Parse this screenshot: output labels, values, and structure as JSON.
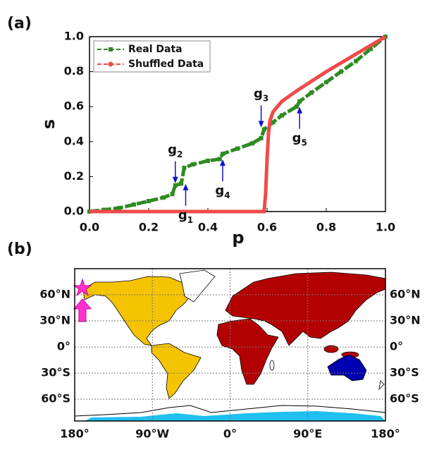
{
  "chart_data": [
    {
      "type": "line",
      "title": "(a)",
      "xlabel": "p",
      "ylabel": "s",
      "xlim": [
        0,
        1
      ],
      "ylim": [
        0,
        1
      ],
      "xticks": [
        {
          "value": 0,
          "label": "0.0"
        },
        0.2,
        0.4,
        0.6,
        0.8,
        {
          "value": 1,
          "label": "1.0"
        }
      ],
      "yticks": [
        {
          "value": 0,
          "label": "0.0"
        },
        0.2,
        0.4,
        0.6,
        0.8,
        {
          "value": 1,
          "label": "1.0"
        }
      ],
      "legend": "upper left",
      "series": [
        {
          "name": "Real Data",
          "color": "#2e8b22",
          "x": [
            0,
            0.05,
            0.1,
            0.15,
            0.2,
            0.25,
            0.28,
            0.29,
            0.31,
            0.32,
            0.35,
            0.4,
            0.44,
            0.45,
            0.5,
            0.55,
            0.58,
            0.59,
            0.62,
            0.65,
            0.7,
            0.71,
            0.75,
            0.8,
            0.85,
            0.9,
            0.95,
            1.0
          ],
          "values": [
            0,
            0.01,
            0.02,
            0.04,
            0.06,
            0.08,
            0.1,
            0.15,
            0.16,
            0.25,
            0.27,
            0.29,
            0.3,
            0.33,
            0.36,
            0.39,
            0.42,
            0.47,
            0.51,
            0.55,
            0.6,
            0.63,
            0.68,
            0.74,
            0.8,
            0.86,
            0.93,
            1.0
          ]
        },
        {
          "name": "Shuffled Data",
          "color": "#f04a4a",
          "x": [
            0,
            0.55,
            0.59,
            0.595,
            0.6,
            0.605,
            0.61,
            0.62,
            0.65,
            0.7,
            0.8,
            0.9,
            1.0
          ],
          "values": [
            0,
            0,
            0,
            0.1,
            0.3,
            0.45,
            0.52,
            0.57,
            0.63,
            0.69,
            0.8,
            0.9,
            1.0
          ]
        }
      ],
      "annotations": [
        {
          "text": "g",
          "sub": "1",
          "x": 0.325,
          "y": 0.17,
          "direction": "up"
        },
        {
          "text": "g",
          "sub": "2",
          "x": 0.29,
          "y": 0.15,
          "direction": "down"
        },
        {
          "text": "g",
          "sub": "3",
          "x": 0.58,
          "y": 0.47,
          "direction": "down"
        },
        {
          "text": "g",
          "sub": "4",
          "x": 0.45,
          "y": 0.31,
          "direction": "up"
        },
        {
          "text": "g",
          "sub": "5",
          "x": 0.71,
          "y": 0.61,
          "direction": "up"
        }
      ]
    },
    {
      "type": "map",
      "title": "(b)",
      "xlim": [
        -180,
        180
      ],
      "ylim": [
        -85,
        90
      ],
      "xticks": [
        {
          "value": -180,
          "label": "180°"
        },
        {
          "value": -90,
          "label": "90°W"
        },
        {
          "value": 0,
          "label": "0°"
        },
        {
          "value": 90,
          "label": "90°E"
        },
        {
          "value": 180,
          "label": "180°"
        }
      ],
      "yticks": [
        {
          "value": 60,
          "label": "60°N"
        },
        {
          "value": 30,
          "label": "30°N"
        },
        {
          "value": 0,
          "label": "0°"
        },
        {
          "value": -30,
          "label": "30°S"
        },
        {
          "value": -60,
          "label": "60°S"
        }
      ],
      "grid": true
    }
  ]
}
